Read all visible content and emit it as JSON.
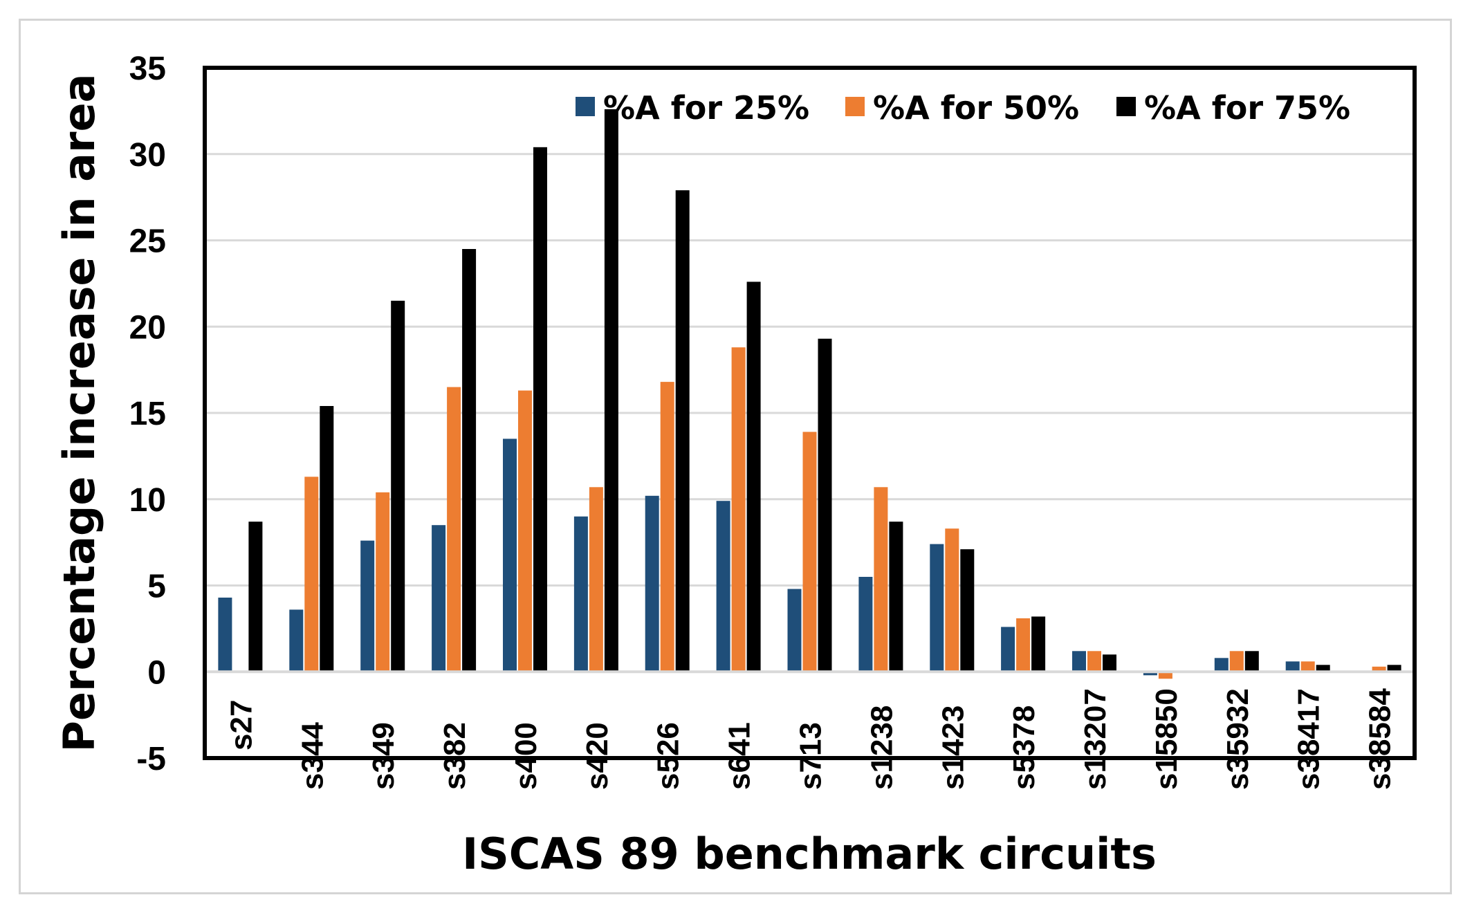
{
  "chart_data": {
    "type": "bar",
    "title": "",
    "xlabel": "ISCAS 89 benchmark circuits",
    "ylabel": "Percentage increase in area",
    "ylim": [
      -5,
      35
    ],
    "yticks": [
      -5,
      0,
      5,
      10,
      15,
      20,
      25,
      30,
      35
    ],
    "grid": true,
    "legend_position": "top-right",
    "categories": [
      "s27",
      "s344",
      "s349",
      "s382",
      "s400",
      "s420",
      "s526",
      "s641",
      "s713",
      "s1238",
      "s1423",
      "s5378",
      "s13207",
      "s15850",
      "s35932",
      "s38417",
      "s38584"
    ],
    "series": [
      {
        "name": "%A for 25%",
        "color": "#1f4e79",
        "values": [
          4.3,
          3.6,
          7.6,
          8.5,
          13.5,
          9.0,
          10.2,
          9.9,
          4.8,
          5.5,
          7.4,
          2.6,
          1.2,
          -0.2,
          0.8,
          0.6,
          0.0
        ]
      },
      {
        "name": "%A for 50%",
        "color": "#ed7d31",
        "values": [
          0.0,
          11.3,
          10.4,
          16.5,
          16.3,
          10.7,
          16.8,
          18.8,
          13.9,
          10.7,
          8.3,
          3.1,
          1.2,
          -0.4,
          1.2,
          0.6,
          0.3
        ]
      },
      {
        "name": "%A for 75%",
        "color": "#000000",
        "values": [
          8.7,
          15.4,
          21.5,
          24.5,
          30.4,
          32.6,
          27.9,
          22.6,
          19.3,
          8.7,
          7.1,
          3.2,
          1.0,
          0.0,
          1.2,
          0.4,
          0.4
        ]
      }
    ]
  }
}
